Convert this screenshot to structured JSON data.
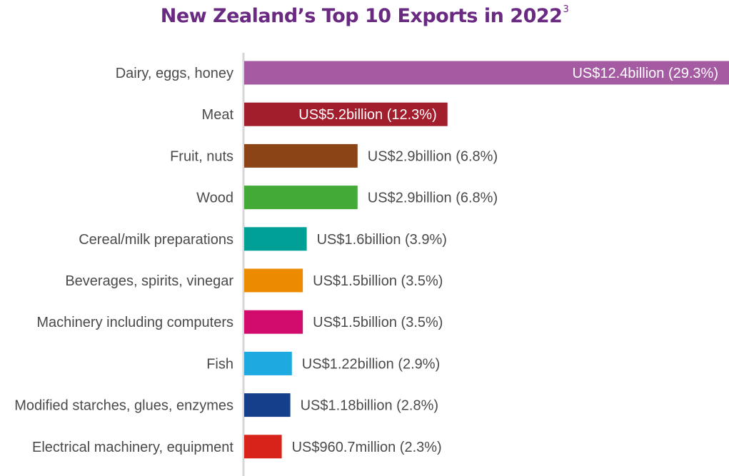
{
  "chart_data": {
    "type": "bar",
    "orientation": "horizontal",
    "title": "New Zealand’s Top 10 Exports in 2022",
    "title_footnote": "3",
    "xlabel": "",
    "ylabel": "",
    "grid": false,
    "legend": "none",
    "unit": "US$ billion",
    "categories": [
      "Dairy, eggs, honey",
      "Meat",
      "Fruit, nuts",
      "Wood",
      "Cereal/milk preparations",
      "Beverages, spirits, vinegar",
      "Machinery including computers",
      "Fish",
      "Modified starches, glues, enzymes",
      "Electrical machinery, equipment"
    ],
    "values": [
      12.4,
      5.2,
      2.9,
      2.9,
      1.6,
      1.5,
      1.5,
      1.22,
      1.18,
      0.9607
    ],
    "labels": [
      "US$12.4billion (29.3%)",
      "US$5.2billion (12.3%)",
      "US$2.9billion (6.8%)",
      "US$2.9billion (6.8%)",
      "US$1.6billion (3.9%)",
      "US$1.5billion (3.5%)",
      "US$1.5billion (3.5%)",
      "US$1.22billion (2.9%)",
      "US$1.18billion (2.8%)",
      "US$960.7million (2.3%)"
    ],
    "label_inside": [
      true,
      true,
      false,
      false,
      false,
      false,
      false,
      false,
      false,
      false
    ],
    "colors": [
      "#a45ba2",
      "#a21e2d",
      "#8b4416",
      "#43aa38",
      "#00a096",
      "#ec8b00",
      "#d10c6c",
      "#1fa9e1",
      "#163f8b",
      "#d7231a"
    ],
    "xlim": [
      0,
      12.4
    ]
  }
}
